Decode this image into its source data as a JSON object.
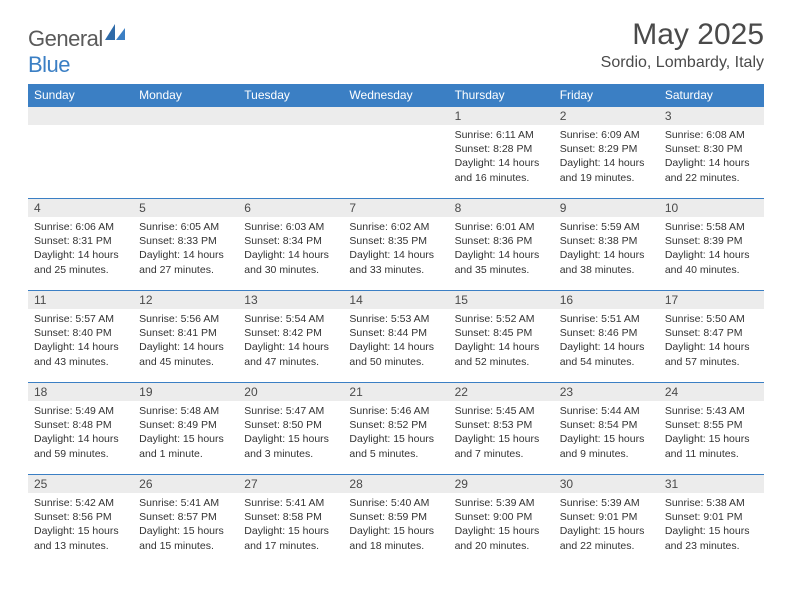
{
  "brand": {
    "general": "General",
    "blue": "Blue"
  },
  "title": "May 2025",
  "location": "Sordio, Lombardy, Italy",
  "colors": {
    "header_bg": "#3b7fc4",
    "header_text": "#ffffff",
    "daynum_bg": "#ececec",
    "text": "#333333",
    "rule": "#3b7fc4",
    "logo_gray": "#5a5a5a",
    "logo_blue": "#3b7fc4"
  },
  "columns": [
    "Sunday",
    "Monday",
    "Tuesday",
    "Wednesday",
    "Thursday",
    "Friday",
    "Saturday"
  ],
  "weeks": [
    [
      {
        "n": "",
        "sr": "",
        "ss": "",
        "dl": ""
      },
      {
        "n": "",
        "sr": "",
        "ss": "",
        "dl": ""
      },
      {
        "n": "",
        "sr": "",
        "ss": "",
        "dl": ""
      },
      {
        "n": "",
        "sr": "",
        "ss": "",
        "dl": ""
      },
      {
        "n": "1",
        "sr": "Sunrise: 6:11 AM",
        "ss": "Sunset: 8:28 PM",
        "dl": "Daylight: 14 hours and 16 minutes."
      },
      {
        "n": "2",
        "sr": "Sunrise: 6:09 AM",
        "ss": "Sunset: 8:29 PM",
        "dl": "Daylight: 14 hours and 19 minutes."
      },
      {
        "n": "3",
        "sr": "Sunrise: 6:08 AM",
        "ss": "Sunset: 8:30 PM",
        "dl": "Daylight: 14 hours and 22 minutes."
      }
    ],
    [
      {
        "n": "4",
        "sr": "Sunrise: 6:06 AM",
        "ss": "Sunset: 8:31 PM",
        "dl": "Daylight: 14 hours and 25 minutes."
      },
      {
        "n": "5",
        "sr": "Sunrise: 6:05 AM",
        "ss": "Sunset: 8:33 PM",
        "dl": "Daylight: 14 hours and 27 minutes."
      },
      {
        "n": "6",
        "sr": "Sunrise: 6:03 AM",
        "ss": "Sunset: 8:34 PM",
        "dl": "Daylight: 14 hours and 30 minutes."
      },
      {
        "n": "7",
        "sr": "Sunrise: 6:02 AM",
        "ss": "Sunset: 8:35 PM",
        "dl": "Daylight: 14 hours and 33 minutes."
      },
      {
        "n": "8",
        "sr": "Sunrise: 6:01 AM",
        "ss": "Sunset: 8:36 PM",
        "dl": "Daylight: 14 hours and 35 minutes."
      },
      {
        "n": "9",
        "sr": "Sunrise: 5:59 AM",
        "ss": "Sunset: 8:38 PM",
        "dl": "Daylight: 14 hours and 38 minutes."
      },
      {
        "n": "10",
        "sr": "Sunrise: 5:58 AM",
        "ss": "Sunset: 8:39 PM",
        "dl": "Daylight: 14 hours and 40 minutes."
      }
    ],
    [
      {
        "n": "11",
        "sr": "Sunrise: 5:57 AM",
        "ss": "Sunset: 8:40 PM",
        "dl": "Daylight: 14 hours and 43 minutes."
      },
      {
        "n": "12",
        "sr": "Sunrise: 5:56 AM",
        "ss": "Sunset: 8:41 PM",
        "dl": "Daylight: 14 hours and 45 minutes."
      },
      {
        "n": "13",
        "sr": "Sunrise: 5:54 AM",
        "ss": "Sunset: 8:42 PM",
        "dl": "Daylight: 14 hours and 47 minutes."
      },
      {
        "n": "14",
        "sr": "Sunrise: 5:53 AM",
        "ss": "Sunset: 8:44 PM",
        "dl": "Daylight: 14 hours and 50 minutes."
      },
      {
        "n": "15",
        "sr": "Sunrise: 5:52 AM",
        "ss": "Sunset: 8:45 PM",
        "dl": "Daylight: 14 hours and 52 minutes."
      },
      {
        "n": "16",
        "sr": "Sunrise: 5:51 AM",
        "ss": "Sunset: 8:46 PM",
        "dl": "Daylight: 14 hours and 54 minutes."
      },
      {
        "n": "17",
        "sr": "Sunrise: 5:50 AM",
        "ss": "Sunset: 8:47 PM",
        "dl": "Daylight: 14 hours and 57 minutes."
      }
    ],
    [
      {
        "n": "18",
        "sr": "Sunrise: 5:49 AM",
        "ss": "Sunset: 8:48 PM",
        "dl": "Daylight: 14 hours and 59 minutes."
      },
      {
        "n": "19",
        "sr": "Sunrise: 5:48 AM",
        "ss": "Sunset: 8:49 PM",
        "dl": "Daylight: 15 hours and 1 minute."
      },
      {
        "n": "20",
        "sr": "Sunrise: 5:47 AM",
        "ss": "Sunset: 8:50 PM",
        "dl": "Daylight: 15 hours and 3 minutes."
      },
      {
        "n": "21",
        "sr": "Sunrise: 5:46 AM",
        "ss": "Sunset: 8:52 PM",
        "dl": "Daylight: 15 hours and 5 minutes."
      },
      {
        "n": "22",
        "sr": "Sunrise: 5:45 AM",
        "ss": "Sunset: 8:53 PM",
        "dl": "Daylight: 15 hours and 7 minutes."
      },
      {
        "n": "23",
        "sr": "Sunrise: 5:44 AM",
        "ss": "Sunset: 8:54 PM",
        "dl": "Daylight: 15 hours and 9 minutes."
      },
      {
        "n": "24",
        "sr": "Sunrise: 5:43 AM",
        "ss": "Sunset: 8:55 PM",
        "dl": "Daylight: 15 hours and 11 minutes."
      }
    ],
    [
      {
        "n": "25",
        "sr": "Sunrise: 5:42 AM",
        "ss": "Sunset: 8:56 PM",
        "dl": "Daylight: 15 hours and 13 minutes."
      },
      {
        "n": "26",
        "sr": "Sunrise: 5:41 AM",
        "ss": "Sunset: 8:57 PM",
        "dl": "Daylight: 15 hours and 15 minutes."
      },
      {
        "n": "27",
        "sr": "Sunrise: 5:41 AM",
        "ss": "Sunset: 8:58 PM",
        "dl": "Daylight: 15 hours and 17 minutes."
      },
      {
        "n": "28",
        "sr": "Sunrise: 5:40 AM",
        "ss": "Sunset: 8:59 PM",
        "dl": "Daylight: 15 hours and 18 minutes."
      },
      {
        "n": "29",
        "sr": "Sunrise: 5:39 AM",
        "ss": "Sunset: 9:00 PM",
        "dl": "Daylight: 15 hours and 20 minutes."
      },
      {
        "n": "30",
        "sr": "Sunrise: 5:39 AM",
        "ss": "Sunset: 9:01 PM",
        "dl": "Daylight: 15 hours and 22 minutes."
      },
      {
        "n": "31",
        "sr": "Sunrise: 5:38 AM",
        "ss": "Sunset: 9:01 PM",
        "dl": "Daylight: 15 hours and 23 minutes."
      }
    ]
  ]
}
